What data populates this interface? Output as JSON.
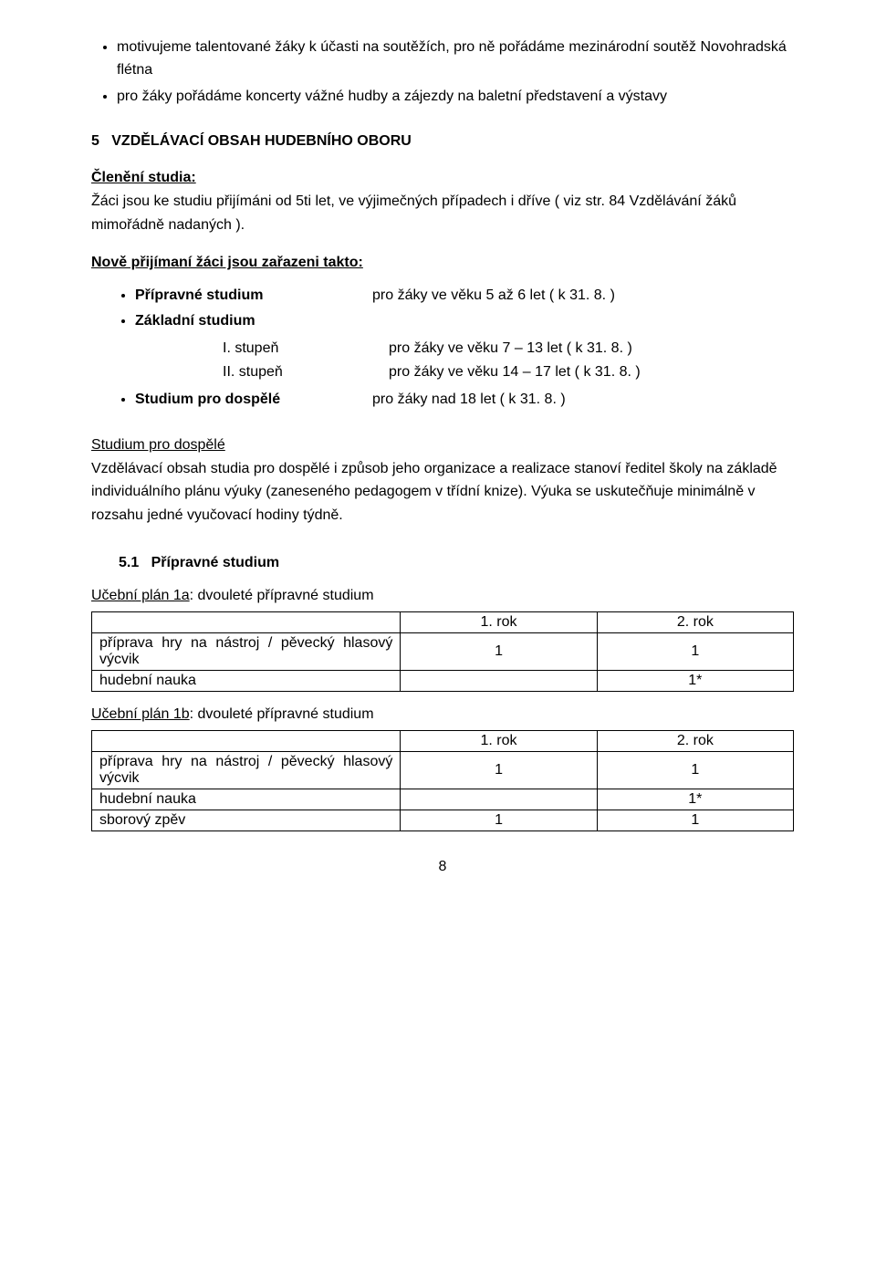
{
  "top_bullets": [
    "motivujeme talentované žáky k účasti na soutěžích, pro ně pořádáme mezinárodní soutěž Novohradská flétna",
    "pro žáky pořádáme koncerty vážné hudby a zájezdy na baletní představení a výstavy"
  ],
  "main_heading_num": "5",
  "main_heading_text": "VZDĚLÁVACÍ OBSAH HUDEBNÍHO OBORU",
  "cleneni_label": "Členění studia:",
  "cleneni_text": "Žáci jsou ke studiu přijímáni od 5ti let, ve výjimečných případech i dříve ( viz str. 84 Vzdělávání žáků mimořádně nadaných ).",
  "nove_heading": "Nově přijímaní žáci jsou zařazeni  takto:",
  "studium_items": {
    "pripravne_label": "Přípravné studium",
    "pripravne_desc": "pro žáky ve věku 5 až 6 let  ( k 31. 8. )",
    "zakladni_label": "Základní studium",
    "stupen1_label": "I. stupeň",
    "stupen1_desc": "pro žáky ve věku 7 – 13 let ( k 31. 8. )",
    "stupen2_label": "II. stupeň",
    "stupen2_desc": "pro žáky ve věku 14 – 17 let ( k 31. 8. )",
    "dospele_label": "Studium pro dospělé",
    "dospele_desc": "pro žáky nad 18 let ( k 31. 8. )"
  },
  "dospele_heading": "Studium pro dospělé",
  "dospele_para": "Vzdělávací obsah studia pro dospělé i způsob jeho organizace a realizace stanoví ředitel školy na základě individuálního plánu výuky (zaneseného pedagogem v třídní knize). Výuka se uskutečňuje minimálně v rozsahu jedné vyučovací hodiny týdně.",
  "subsection_num": "5.1",
  "subsection_text": "Přípravné studium",
  "plan1a": {
    "label_prefix": "Učební plán 1a",
    "label_suffix": ":  dvouleté přípravné studium",
    "col_headers": [
      "1. rok",
      "2. rok"
    ],
    "rows": [
      {
        "label": "příprava hry na nástroj / pěvecký hlasový výcvik",
        "c1": "1",
        "c2": "1"
      },
      {
        "label": "hudební nauka",
        "c1": "",
        "c2": "1*"
      }
    ]
  },
  "plan1b": {
    "label_prefix": "Učební plán 1b",
    "label_suffix": ":  dvouleté přípravné studium",
    "col_headers": [
      "1. rok",
      "2. rok"
    ],
    "rows": [
      {
        "label": "příprava hry na nástroj / pěvecký hlasový výcvik",
        "c1": "1",
        "c2": "1"
      },
      {
        "label": "hudební nauka",
        "c1": "",
        "c2": "1*"
      },
      {
        "label": "sborový zpěv",
        "c1": "1",
        "c2": "1"
      }
    ]
  },
  "page_number": "8"
}
